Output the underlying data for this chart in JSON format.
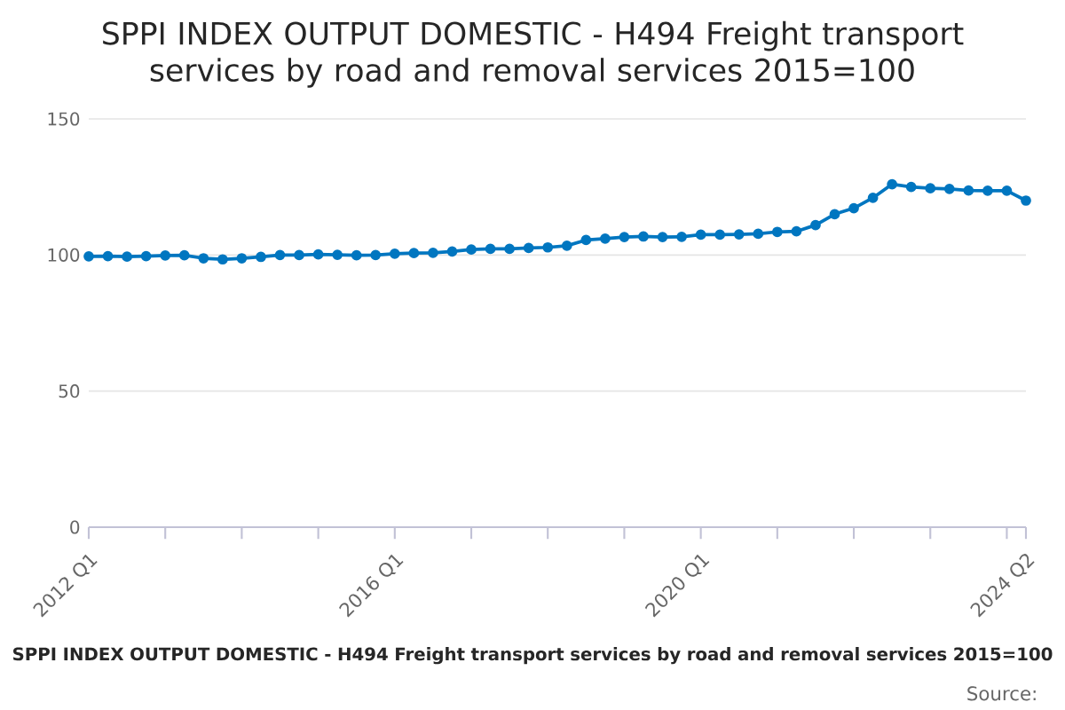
{
  "chart_data": {
    "type": "line",
    "title": "SPPI INDEX OUTPUT DOMESTIC - H494 Freight transport services by road and removal services 2015=100",
    "categories": [
      "2012 Q1",
      null,
      null,
      null,
      null,
      null,
      null,
      null,
      null,
      null,
      null,
      null,
      null,
      null,
      null,
      null,
      "2016 Q1",
      null,
      null,
      null,
      null,
      null,
      null,
      null,
      null,
      null,
      null,
      null,
      null,
      null,
      null,
      null,
      "2020 Q1",
      null,
      null,
      null,
      null,
      null,
      null,
      null,
      null,
      null,
      null,
      null,
      null,
      null,
      null,
      null,
      null,
      "2024 Q2"
    ],
    "series": [
      {
        "color": "#0076c0",
        "values": [
          99.5,
          99.6,
          99.4,
          99.6,
          99.8,
          99.9,
          98.8,
          98.4,
          98.8,
          99.3,
          100.0,
          100.0,
          100.2,
          100.1,
          99.9,
          100.0,
          100.5,
          100.7,
          100.8,
          101.3,
          102.0,
          102.3,
          102.3,
          102.6,
          102.8,
          103.4,
          105.5,
          106.0,
          106.6,
          106.8,
          106.6,
          106.7,
          107.5,
          107.5,
          107.6,
          107.8,
          108.5,
          108.7,
          111.0,
          115.0,
          117.2,
          121.0,
          126.0,
          125.0,
          124.5,
          124.3,
          123.7,
          123.6,
          123.6,
          120.0
        ]
      }
    ],
    "ylim": [
      0,
      150
    ],
    "yticks": [
      0,
      50,
      100,
      150
    ],
    "grid": "y",
    "marker": "circle",
    "line_style": "solid",
    "annotations": [
      "SPPI INDEX OUTPUT DOMESTIC - H494 Freight transport services by road and removal services 2015=100",
      "Source:"
    ]
  }
}
